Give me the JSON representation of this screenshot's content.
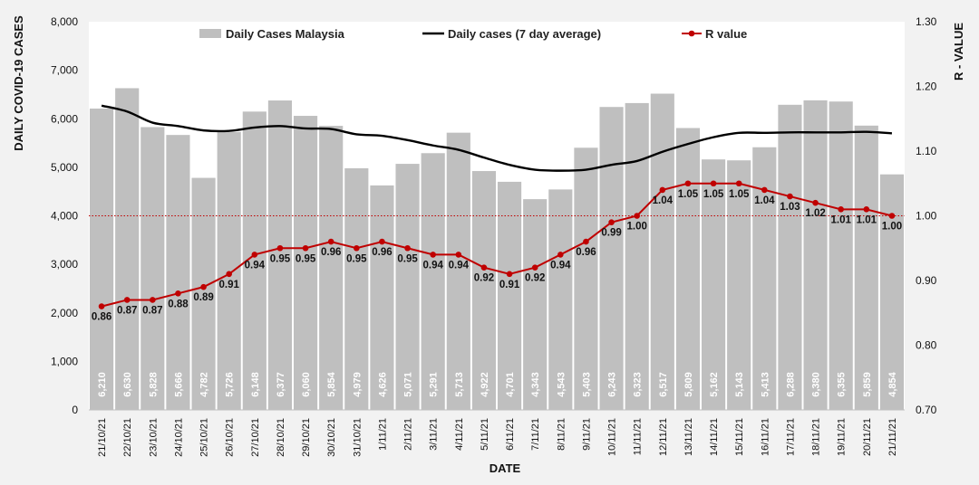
{
  "chart_data": {
    "type": "bar",
    "xlabel": "DATE",
    "ylabel_left": "DAILY COVID-19 CASES",
    "ylabel_right": "R - VALUE",
    "ylim_left": [
      0,
      8000
    ],
    "yticks_left": [
      "0",
      "1,000",
      "2,000",
      "3,000",
      "4,000",
      "5,000",
      "6,000",
      "7,000",
      "8,000"
    ],
    "ylim_right": [
      0.7,
      1.3
    ],
    "yticks_right": [
      "0.70",
      "0.80",
      "0.90",
      "1.00",
      "1.10",
      "1.20",
      "1.30"
    ],
    "reference_line_r": 1.0,
    "categories": [
      "21/10/21",
      "22/10/21",
      "23/10/21",
      "24/10/21",
      "25/10/21",
      "26/10/21",
      "27/10/21",
      "28/10/21",
      "29/10/21",
      "30/10/21",
      "31/10/21",
      "1/11/21",
      "2/11/21",
      "3/11/21",
      "4/11/21",
      "5/11/21",
      "6/11/21",
      "7/11/21",
      "8/11/21",
      "9/11/21",
      "10/11/21",
      "11/11/21",
      "12/11/21",
      "13/11/21",
      "14/11/21",
      "15/11/21",
      "16/11/21",
      "17/11/21",
      "18/11/21",
      "19/11/21",
      "20/11/21",
      "21/11/21"
    ],
    "series": [
      {
        "name": "Daily Cases Malaysia",
        "type": "bar",
        "axis": "left",
        "color": "#bfbfbf",
        "values": [
          6210,
          6630,
          5828,
          5666,
          4782,
          5726,
          6148,
          6377,
          6060,
          5854,
          4979,
          4626,
          5071,
          5291,
          5713,
          4922,
          4701,
          4343,
          4543,
          5403,
          6243,
          6323,
          6517,
          5809,
          5162,
          5143,
          5413,
          6288,
          6380,
          6355,
          5859,
          4854
        ],
        "labels": [
          "6,210",
          "6,630",
          "5,828",
          "5,666",
          "4,782",
          "5,726",
          "6,148",
          "6,377",
          "6,060",
          "5,854",
          "4,979",
          "4,626",
          "5,071",
          "5,291",
          "5,713",
          "4,922",
          "4,701",
          "4,343",
          "4,543",
          "5,403",
          "6,243",
          "6,323",
          "6,517",
          "5,809",
          "5,162",
          "5,143",
          "5,413",
          "6,288",
          "6,380",
          "6,355",
          "5,859",
          "4,854"
        ]
      },
      {
        "name": "Daily cases (7 day average)",
        "type": "line",
        "axis": "left",
        "color": "#000000",
        "values": [
          6270,
          6150,
          5920,
          5850,
          5760,
          5750,
          5820,
          5850,
          5800,
          5790,
          5680,
          5650,
          5560,
          5450,
          5360,
          5200,
          5050,
          4950,
          4930,
          4950,
          5050,
          5130,
          5320,
          5480,
          5620,
          5710,
          5710,
          5720,
          5720,
          5720,
          5730,
          5700
        ]
      },
      {
        "name": "R value",
        "type": "line",
        "axis": "right",
        "color": "#c00000",
        "values": [
          0.86,
          0.87,
          0.87,
          0.88,
          0.89,
          0.91,
          0.94,
          0.95,
          0.95,
          0.96,
          0.95,
          0.96,
          0.95,
          0.94,
          0.94,
          0.92,
          0.91,
          0.92,
          0.94,
          0.96,
          0.99,
          1.0,
          1.04,
          1.05,
          1.05,
          1.05,
          1.04,
          1.03,
          1.02,
          1.01,
          1.01,
          1.0
        ],
        "labels": [
          "0.86",
          "0.87",
          "0.87",
          "0.88",
          "0.89",
          "0.91",
          "0.94",
          "0.95",
          "0.95",
          "0.96",
          "0.95",
          "0.96",
          "0.95",
          "0.94",
          "0.94",
          "0.92",
          "0.91",
          "0.92",
          "0.94",
          "0.96",
          "0.99",
          "1.00",
          "1.04",
          "1.05",
          "1.05",
          "1.05",
          "1.04",
          "1.03",
          "1.02",
          "1.01",
          "1.01",
          "1.00"
        ]
      }
    ]
  }
}
